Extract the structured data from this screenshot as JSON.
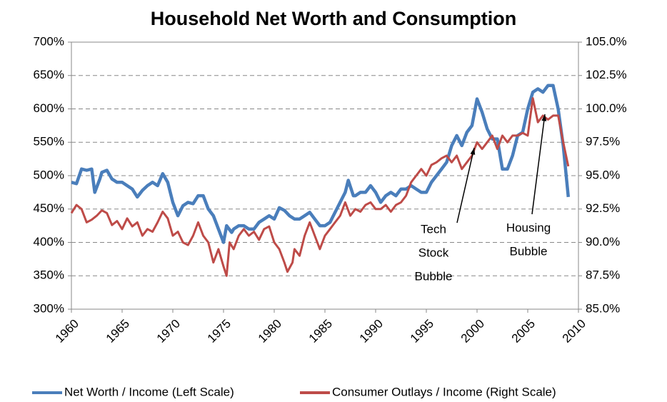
{
  "chart_data": {
    "type": "line",
    "title": "Household Net Worth and Consumption",
    "xlim": [
      1960,
      2010
    ],
    "xticks": [
      1960,
      1965,
      1970,
      1975,
      1980,
      1985,
      1990,
      1995,
      2000,
      2005,
      2010
    ],
    "ylim": [
      300,
      700
    ],
    "yticks": [
      {
        "value": 300,
        "label": "300%"
      },
      {
        "value": 350,
        "label": "350%"
      },
      {
        "value": 400,
        "label": "400%"
      },
      {
        "value": 450,
        "label": "450%"
      },
      {
        "value": 500,
        "label": "500%"
      },
      {
        "value": 550,
        "label": "550%"
      },
      {
        "value": 600,
        "label": "600%"
      },
      {
        "value": 650,
        "label": "650%"
      },
      {
        "value": 700,
        "label": "700%"
      }
    ],
    "y2lim": [
      85,
      105
    ],
    "y2ticks": [
      {
        "value": 85,
        "label": "85.0%"
      },
      {
        "value": 87.5,
        "label": "87.5%"
      },
      {
        "value": 90,
        "label": "90.0%"
      },
      {
        "value": 92.5,
        "label": "92.5%"
      },
      {
        "value": 95,
        "label": "95.0%"
      },
      {
        "value": 97.5,
        "label": "97.5%"
      },
      {
        "value": 100,
        "label": "100.0%"
      },
      {
        "value": 102.5,
        "label": "102.5%"
      },
      {
        "value": 105,
        "label": "105.0%"
      }
    ],
    "grid": true,
    "legend": "bottom",
    "series": [
      {
        "name": "Net Worth / Income (Left Scale)",
        "color": "#4a7ebb",
        "axis": "y",
        "x": [
          1960,
          1960.5,
          1961,
          1961.5,
          1962,
          1962.3,
          1962.8,
          1963,
          1963.5,
          1964,
          1964.5,
          1965,
          1965.5,
          1966,
          1966.5,
          1967,
          1967.5,
          1968,
          1968.5,
          1969,
          1969.5,
          1970,
          1970.5,
          1971,
          1971.5,
          1972,
          1972.5,
          1973,
          1973.5,
          1974,
          1974.5,
          1975,
          1975.3,
          1975.8,
          1976,
          1976.5,
          1977,
          1977.5,
          1978,
          1978.5,
          1979,
          1979.5,
          1980,
          1980.5,
          1981,
          1981.5,
          1982,
          1982.5,
          1983,
          1983.5,
          1984,
          1984.5,
          1985,
          1985.5,
          1986,
          1986.5,
          1987,
          1987.3,
          1987.8,
          1988,
          1988.5,
          1989,
          1989.5,
          1990,
          1990.5,
          1991,
          1991.5,
          1992,
          1992.5,
          1993,
          1993.5,
          1994,
          1994.5,
          1995,
          1995.5,
          1996,
          1996.5,
          1997,
          1997.5,
          1998,
          1998.5,
          1999,
          1999.5,
          2000,
          2000.5,
          2001,
          2001.5,
          2002,
          2002.5,
          2003,
          2003.5,
          2004,
          2004.5,
          2005,
          2005.5,
          2006,
          2006.5,
          2007,
          2007.5,
          2008,
          2008.5,
          2009
        ],
        "values": [
          490,
          488,
          510,
          508,
          510,
          475,
          495,
          505,
          508,
          495,
          490,
          490,
          485,
          480,
          468,
          478,
          485,
          490,
          485,
          503,
          490,
          460,
          440,
          455,
          460,
          458,
          470,
          470,
          450,
          440,
          420,
          400,
          425,
          415,
          420,
          425,
          425,
          420,
          420,
          430,
          435,
          440,
          435,
          452,
          448,
          440,
          435,
          435,
          440,
          445,
          435,
          425,
          425,
          430,
          445,
          460,
          475,
          493,
          470,
          470,
          475,
          475,
          485,
          475,
          460,
          470,
          475,
          470,
          480,
          480,
          485,
          480,
          475,
          475,
          490,
          500,
          510,
          520,
          545,
          560,
          545,
          565,
          575,
          615,
          595,
          570,
          555,
          555,
          510,
          510,
          530,
          560,
          565,
          600,
          625,
          630,
          625,
          635,
          635,
          600,
          545,
          468
        ]
      },
      {
        "name": "Consumer Outlays / Income (Right Scale)",
        "color": "#be4b48",
        "axis": "y2",
        "x": [
          1960,
          1960.5,
          1961,
          1961.5,
          1962,
          1962.5,
          1963,
          1963.5,
          1964,
          1964.5,
          1965,
          1965.5,
          1966,
          1966.5,
          1967,
          1967.5,
          1968,
          1968.5,
          1969,
          1969.5,
          1970,
          1970.5,
          1971,
          1971.5,
          1972,
          1972.5,
          1973,
          1973.5,
          1974,
          1974.5,
          1975,
          1975.3,
          1975.6,
          1976,
          1976.5,
          1977,
          1977.5,
          1978,
          1978.5,
          1979,
          1979.5,
          1980,
          1980.5,
          1981,
          1981.3,
          1981.8,
          1982,
          1982.5,
          1983,
          1983.5,
          1984,
          1984.5,
          1985,
          1985.5,
          1986,
          1986.5,
          1987,
          1987.5,
          1988,
          1988.5,
          1989,
          1989.5,
          1990,
          1990.5,
          1991,
          1991.5,
          1992,
          1992.5,
          1993,
          1993.5,
          1994,
          1994.5,
          1995,
          1995.5,
          1996,
          1996.5,
          1997,
          1997.5,
          1998,
          1998.5,
          1999,
          1999.5,
          2000,
          2000.5,
          2001,
          2001.5,
          2002,
          2002.5,
          2003,
          2003.5,
          2004,
          2004.5,
          2005,
          2005.5,
          2006,
          2006.5,
          2007,
          2007.5,
          2008,
          2008.5,
          2009
        ],
        "values": [
          92.2,
          92.8,
          92.5,
          91.5,
          91.7,
          92.0,
          92.4,
          92.2,
          91.3,
          91.6,
          91.0,
          91.8,
          91.2,
          91.5,
          90.5,
          91.0,
          90.8,
          91.5,
          92.3,
          91.8,
          90.5,
          90.8,
          90.0,
          89.8,
          90.5,
          91.5,
          90.5,
          90.0,
          88.5,
          89.5,
          88.2,
          87.5,
          90.0,
          89.5,
          90.5,
          91.0,
          90.5,
          90.8,
          90.2,
          91.0,
          91.2,
          90.0,
          89.5,
          88.5,
          87.8,
          88.5,
          89.5,
          89.0,
          90.5,
          91.5,
          90.5,
          89.5,
          90.5,
          91.0,
          91.5,
          92.0,
          93.0,
          92.0,
          92.5,
          92.3,
          92.8,
          93.0,
          92.5,
          92.5,
          92.8,
          92.3,
          92.8,
          93.0,
          93.5,
          94.5,
          95.0,
          95.5,
          95.0,
          95.8,
          96.0,
          96.3,
          96.5,
          96.0,
          96.5,
          95.5,
          96.0,
          96.5,
          97.5,
          97.0,
          97.5,
          98.0,
          97.0,
          98.0,
          97.5,
          98.0,
          98.0,
          98.2,
          98.0,
          100.8,
          99.0,
          99.5,
          99.2,
          99.5,
          99.5,
          97.5,
          95.7
        ]
      }
    ],
    "annotations": [
      [
        "Tech",
        "Stock",
        "Bubble"
      ],
      [
        "Housing",
        "Bubble"
      ]
    ]
  }
}
